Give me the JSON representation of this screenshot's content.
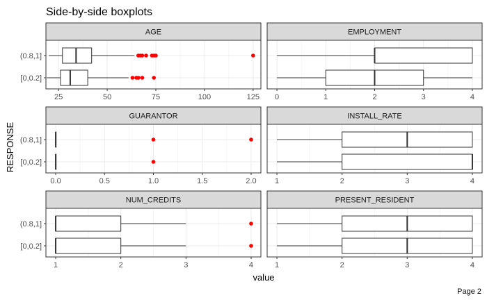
{
  "chart_data": {
    "type": "boxplot",
    "title": "Side-by-side boxplots",
    "xlabel": "value",
    "ylabel": "RESPONSE",
    "footer": "Page 2",
    "groups": [
      "(0.8,1]",
      "[0,0.2]"
    ],
    "outlier_color": "#ff0000",
    "grid": true,
    "facets": [
      {
        "name": "AGE",
        "xlim": [
          18.5,
          129
        ],
        "ticks": [
          25,
          50,
          75,
          100,
          125
        ],
        "tick_labels": [
          "25",
          "50",
          "75",
          "100",
          "125"
        ],
        "boxes": [
          {
            "group": "(0.8,1]",
            "min": 20,
            "q1": 27,
            "median": 34,
            "q3": 42,
            "max": 64,
            "outliers": [
              66,
              67,
              68,
              70,
              73,
              74,
              75,
              125
            ]
          },
          {
            "group": "[0,0.2]",
            "min": 19,
            "q1": 26,
            "median": 31,
            "q3": 40,
            "max": 61,
            "outliers": [
              63,
              65,
              66,
              68,
              74
            ]
          }
        ]
      },
      {
        "name": "EMPLOYMENT",
        "xlim": [
          -0.2,
          4.2
        ],
        "ticks": [
          0,
          1,
          2,
          3,
          4
        ],
        "tick_labels": [
          "0",
          "1",
          "2",
          "3",
          "4"
        ],
        "boxes": [
          {
            "group": "(0.8,1]",
            "min": 0,
            "q1": 2,
            "median": 2,
            "q3": 4,
            "max": 4,
            "outliers": []
          },
          {
            "group": "[0,0.2]",
            "min": 0,
            "q1": 1,
            "median": 2,
            "q3": 3,
            "max": 4,
            "outliers": []
          }
        ]
      },
      {
        "name": "GUARANTOR",
        "xlim": [
          -0.1,
          2.1
        ],
        "ticks": [
          0.0,
          0.5,
          1.0,
          1.5,
          2.0
        ],
        "tick_labels": [
          "0.0",
          "0.5",
          "1.0",
          "1.5",
          "2.0"
        ],
        "boxes": [
          {
            "group": "(0.8,1]",
            "min": 0,
            "q1": 0,
            "median": 0,
            "q3": 0,
            "max": 0,
            "outliers": [
              1,
              2
            ]
          },
          {
            "group": "[0,0.2]",
            "min": 0,
            "q1": 0,
            "median": 0,
            "q3": 0,
            "max": 0,
            "outliers": [
              1
            ]
          }
        ]
      },
      {
        "name": "INSTALL_RATE",
        "xlim": [
          0.85,
          4.15
        ],
        "ticks": [
          1,
          2,
          3,
          4
        ],
        "tick_labels": [
          "1",
          "2",
          "3",
          "4"
        ],
        "boxes": [
          {
            "group": "(0.8,1]",
            "min": 1,
            "q1": 2,
            "median": 3,
            "q3": 4,
            "max": 4,
            "outliers": []
          },
          {
            "group": "[0,0.2]",
            "min": 1,
            "q1": 2,
            "median": 4,
            "q3": 4,
            "max": 4,
            "outliers": []
          }
        ]
      },
      {
        "name": "NUM_CREDITS",
        "xlim": [
          0.85,
          4.15
        ],
        "ticks": [
          1,
          2,
          3,
          4
        ],
        "tick_labels": [
          "1",
          "2",
          "3",
          "4"
        ],
        "boxes": [
          {
            "group": "(0.8,1]",
            "min": 1,
            "q1": 1,
            "median": 1,
            "q3": 2,
            "max": 3,
            "outliers": [
              4
            ]
          },
          {
            "group": "[0,0.2]",
            "min": 1,
            "q1": 1,
            "median": 1,
            "q3": 2,
            "max": 3,
            "outliers": [
              4
            ]
          }
        ]
      },
      {
        "name": "PRESENT_RESIDENT",
        "xlim": [
          0.85,
          4.15
        ],
        "ticks": [
          1,
          2,
          3,
          4
        ],
        "tick_labels": [
          "1",
          "2",
          "3",
          "4"
        ],
        "boxes": [
          {
            "group": "(0.8,1]",
            "min": 1,
            "q1": 2,
            "median": 3,
            "q3": 4,
            "max": 4,
            "outliers": []
          },
          {
            "group": "[0,0.2]",
            "min": 1,
            "q1": 2,
            "median": 3,
            "q3": 4,
            "max": 4,
            "outliers": []
          }
        ]
      }
    ]
  }
}
